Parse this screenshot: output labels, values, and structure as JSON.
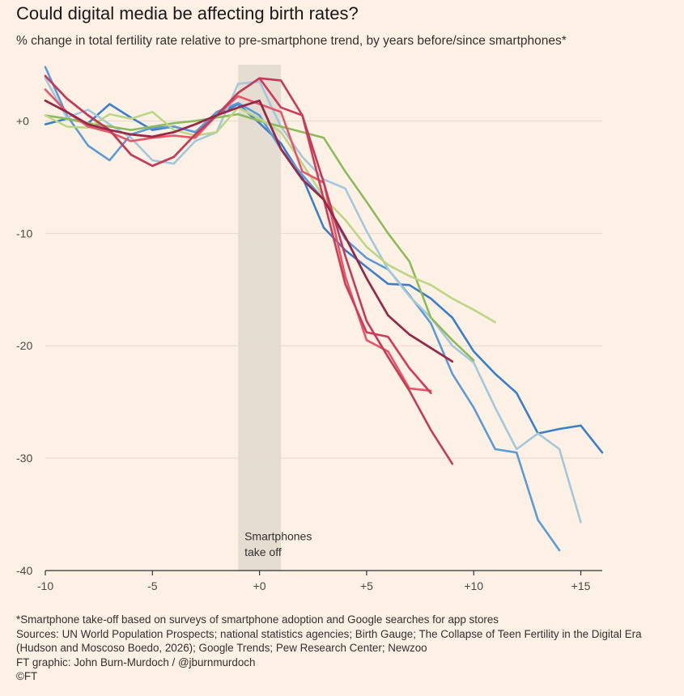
{
  "title": "Could digital media be affecting birth rates?",
  "subtitle": "% change in total fertility rate relative to pre-smartphone trend, by years before/since smartphones*",
  "footnotes": [
    "*Smartphone take-off based on surveys of smartphone adoption and Google searches for app stores",
    "Sources: UN World Population Prospects; national statistics agencies; Birth Gauge; The Collapse of Teen Fertility in the Digital Era",
    "(Hudson and Moscoso Boedo, 2026); Google Trends; Pew Research Center; Newzoo",
    "FT graphic: John Burn-Murdoch / @jburnmurdoch",
    "©FT"
  ],
  "chart_data": {
    "type": "line",
    "title": "Could digital media be affecting birth rates?",
    "subtitle": "% change in total fertility rate relative to pre-smartphone trend, by years before/since smartphones*",
    "xlabel": "",
    "ylabel": "",
    "xlim": [
      -10,
      16
    ],
    "ylim": [
      -40,
      5
    ],
    "x_ticks": [
      {
        "value": -10,
        "label": "-10"
      },
      {
        "value": -5,
        "label": "-5"
      },
      {
        "value": 0,
        "label": "+0"
      },
      {
        "value": 5,
        "label": "+5"
      },
      {
        "value": 10,
        "label": "+10"
      },
      {
        "value": 15,
        "label": "+15"
      }
    ],
    "y_ticks": [
      {
        "value": 0,
        "label": "+0"
      },
      {
        "value": -10,
        "label": "-10"
      },
      {
        "value": -20,
        "label": "-20"
      },
      {
        "value": -30,
        "label": "-30"
      },
      {
        "value": -40,
        "label": "-40"
      }
    ],
    "grid": "horizontal",
    "shaded_band": {
      "x0": -1,
      "x1": 1,
      "color": "#e0d8cf"
    },
    "annotations": [
      {
        "text": "Smartphones",
        "x": -0.7,
        "y": -37.3
      },
      {
        "text": "take off",
        "x": -0.7,
        "y": -38.7
      }
    ],
    "series": [
      {
        "color": "#3a7fc8",
        "x": [
          -10,
          -9,
          -8,
          -7,
          -6,
          -5,
          -4,
          -3,
          -2,
          -1,
          0,
          1,
          2,
          3,
          4,
          5,
          6,
          7,
          8,
          9,
          10,
          11,
          12,
          13,
          14,
          15,
          16
        ],
        "y": [
          -0.3,
          0.2,
          -0.2,
          1.5,
          0.3,
          -0.8,
          -0.5,
          -1.0,
          0.5,
          1.5,
          -0.2,
          -2.0,
          -5.0,
          -9.5,
          -11.5,
          -13.0,
          -14.5,
          -14.6,
          -15.8,
          -17.5,
          -20.5,
          -22.5,
          -24.2,
          -27.8,
          -27.4,
          -27.1,
          -29.5
        ]
      },
      {
        "color": "#5c9bd6",
        "x": [
          -10,
          -9,
          -8,
          -7,
          -6,
          -5,
          -4,
          -3,
          -2,
          -1,
          0,
          1,
          2,
          3,
          4,
          5,
          6,
          7,
          8,
          9,
          10,
          11,
          12,
          13,
          14
        ],
        "y": [
          4.8,
          0.5,
          -2.2,
          -3.5,
          -1.2,
          -0.6,
          -0.5,
          -1.0,
          0.8,
          1.6,
          0.5,
          -2.5,
          -4.8,
          -7.0,
          -10.5,
          -12.2,
          -13.2,
          -15.5,
          -18.0,
          -22.5,
          -25.5,
          -29.2,
          -29.5,
          -35.5,
          -38.2
        ]
      },
      {
        "color": "#a3c8db",
        "x": [
          -10,
          -9,
          -8,
          -7,
          -6,
          -5,
          -4,
          -3,
          -2,
          -1,
          0,
          1,
          2,
          3,
          4,
          5,
          6,
          7,
          8,
          9,
          10,
          11,
          12,
          13,
          14,
          15
        ],
        "y": [
          3.8,
          0.3,
          1.0,
          -0.3,
          -1.5,
          -3.5,
          -3.8,
          -1.8,
          -1.0,
          3.3,
          3.5,
          -0.5,
          -3.2,
          -5.2,
          -6.0,
          -9.8,
          -13.2,
          -15.6,
          -17.5,
          -20.0,
          -21.5,
          -25.5,
          -29.2,
          -27.8,
          -29.2,
          -35.7
        ]
      },
      {
        "color": "#8dba5a",
        "x": [
          -10,
          -9,
          -8,
          -7,
          -6,
          -5,
          -4,
          -3,
          -2,
          -1,
          0,
          1,
          2,
          3,
          4,
          5,
          6,
          7,
          8,
          9,
          10
        ],
        "y": [
          0.5,
          0.2,
          -0.2,
          -0.5,
          -0.8,
          -0.5,
          -0.2,
          0.0,
          0.3,
          0.6,
          0.0,
          -0.5,
          -1.0,
          -1.5,
          -4.5,
          -7.2,
          -10.0,
          -12.5,
          -17.5,
          -19.5,
          -21.3
        ]
      },
      {
        "color": "#bcd685",
        "x": [
          -10,
          -9,
          -8,
          -7,
          -6,
          -5,
          -4,
          -3,
          -2,
          -1,
          0,
          1,
          2,
          3,
          4,
          5,
          6,
          7,
          8,
          9,
          10,
          11
        ],
        "y": [
          0.5,
          -0.5,
          -0.6,
          0.6,
          0.2,
          0.8,
          -0.8,
          -1.3,
          -1.0,
          1.2,
          0.2,
          -1.0,
          -3.8,
          -6.8,
          -8.8,
          -11.2,
          -12.8,
          -13.8,
          -14.6,
          -15.8,
          -16.8,
          -17.9
        ]
      },
      {
        "color": "#e4566a",
        "x": [
          -10,
          -9,
          -8,
          -7,
          -6,
          -5,
          -4,
          -3,
          -2,
          -1,
          0,
          1,
          2,
          3,
          4,
          5,
          6,
          7,
          8
        ],
        "y": [
          2.8,
          0.8,
          -0.5,
          -1.0,
          -1.8,
          -1.5,
          -1.3,
          -1.5,
          0.5,
          2.2,
          1.5,
          0.8,
          -4.5,
          -5.5,
          -13.8,
          -19.5,
          -20.5,
          -23.8,
          -24.0
        ]
      },
      {
        "color": "#d23a58",
        "x": [
          -10,
          -9,
          -8,
          -7,
          -6,
          -5,
          -4,
          -3,
          -2,
          -1,
          0,
          1,
          2,
          3,
          4,
          5,
          6,
          7,
          8
        ],
        "y": [
          4.0,
          2.0,
          0.5,
          -0.8,
          -3.0,
          -4.0,
          -3.2,
          -1.2,
          0.5,
          2.5,
          3.8,
          1.2,
          0.5,
          -7.0,
          -14.5,
          -18.8,
          -19.2,
          -22.0,
          -24.2
        ]
      },
      {
        "color": "#c23c5a",
        "x": [
          -10,
          -9,
          -8,
          -7,
          -6,
          -5,
          -4,
          -3,
          -2,
          -1,
          0,
          1,
          2,
          3,
          4,
          5,
          6,
          7,
          8,
          9
        ],
        "y": [
          4.0,
          2.0,
          0.5,
          -0.8,
          -3.0,
          -4.0,
          -3.2,
          -1.2,
          0.5,
          2.5,
          3.8,
          3.6,
          0.5,
          -5.5,
          -12.0,
          -17.8,
          -21.0,
          -24.0,
          -27.5,
          -30.5
        ]
      },
      {
        "color": "#b13456",
        "x": [
          -10,
          -9,
          -8,
          -7,
          -6,
          -5,
          -4,
          -3,
          -2,
          -1,
          0,
          1,
          2,
          3,
          4,
          5,
          6,
          7,
          8,
          9
        ],
        "y": [
          1.8,
          0.8,
          -0.3,
          -0.8,
          -1.2,
          -1.4,
          -1.0,
          -0.3,
          0.5,
          1.2,
          1.8,
          -2.5,
          -5.2,
          -7.0,
          -10.3,
          -14.0,
          -17.3,
          -19.0,
          -20.2,
          -21.4
        ]
      },
      {
        "color": "#962848",
        "x": [
          -10,
          -9,
          -8,
          -7,
          -6,
          -5,
          -4,
          -3,
          -2,
          -1,
          0,
          1,
          2,
          3,
          4,
          5,
          6,
          7,
          8,
          9
        ],
        "y": [
          1.8,
          0.8,
          -0.3,
          -0.8,
          -1.2,
          -1.4,
          -1.0,
          -0.3,
          0.5,
          1.2,
          1.8,
          -2.5,
          -5.2,
          -7.0,
          -10.3,
          -14.0,
          -17.3,
          -19.0,
          -20.2,
          -21.4
        ]
      }
    ]
  }
}
